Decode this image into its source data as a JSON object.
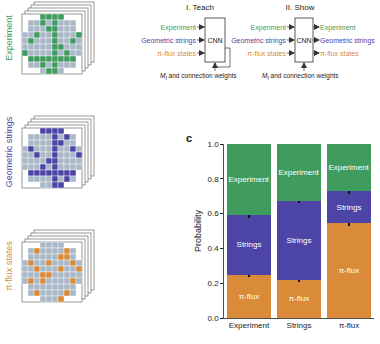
{
  "snapshots": [
    {
      "label": "Experiment",
      "color": "#3f9b5e"
    },
    {
      "label": "Geometric strings",
      "color": "#4d45a6"
    },
    {
      "label": "π-flux states",
      "color": "#d98b3a"
    }
  ],
  "diagram": {
    "steps": [
      {
        "title": "I. Teach",
        "inputs": [
          "Experiment",
          "Geometric strings",
          "π-flux states"
        ],
        "outputs": []
      },
      {
        "title": "II. Show",
        "inputs": [
          "Experiment",
          "Geometric strings",
          "π-flux states"
        ],
        "outputs": [
          "Experiment",
          "Geometric strings",
          "π-flux states"
        ]
      }
    ],
    "box": "CNN",
    "feedback": {
      "symbol": "M",
      "subscript": "f",
      "text": "and connection weights"
    }
  },
  "chart_data": {
    "type": "bar",
    "panel_label": "c",
    "stacked": true,
    "categories": [
      "Experiment",
      "Strings",
      "π-flux"
    ],
    "y_label": "Probability",
    "ylim": [
      0,
      1
    ],
    "yticks": [
      {
        "value": 0,
        "label": "0.0"
      },
      {
        "value": 0.2,
        "label": "0.2"
      },
      {
        "value": 0.4,
        "label": "0.4"
      },
      {
        "value": 0.6,
        "label": "0.6"
      },
      {
        "value": 0.8,
        "label": "0.8"
      },
      {
        "value": 1,
        "label": "1.0"
      }
    ],
    "series": [
      {
        "name": "π-flux",
        "color": "#d98b3a",
        "values": [
          0.25,
          0.22,
          0.545
        ],
        "errors": [
          0.015,
          0.015,
          0.015
        ]
      },
      {
        "name": "Strings",
        "color": "#4d45a6",
        "values": [
          0.34,
          0.455,
          0.185
        ],
        "errors": [
          0.015,
          0.015,
          0.015
        ]
      },
      {
        "name": "Experiment",
        "color": "#3f9b5e",
        "values": [
          0.41,
          0.325,
          0.27
        ]
      }
    ]
  }
}
